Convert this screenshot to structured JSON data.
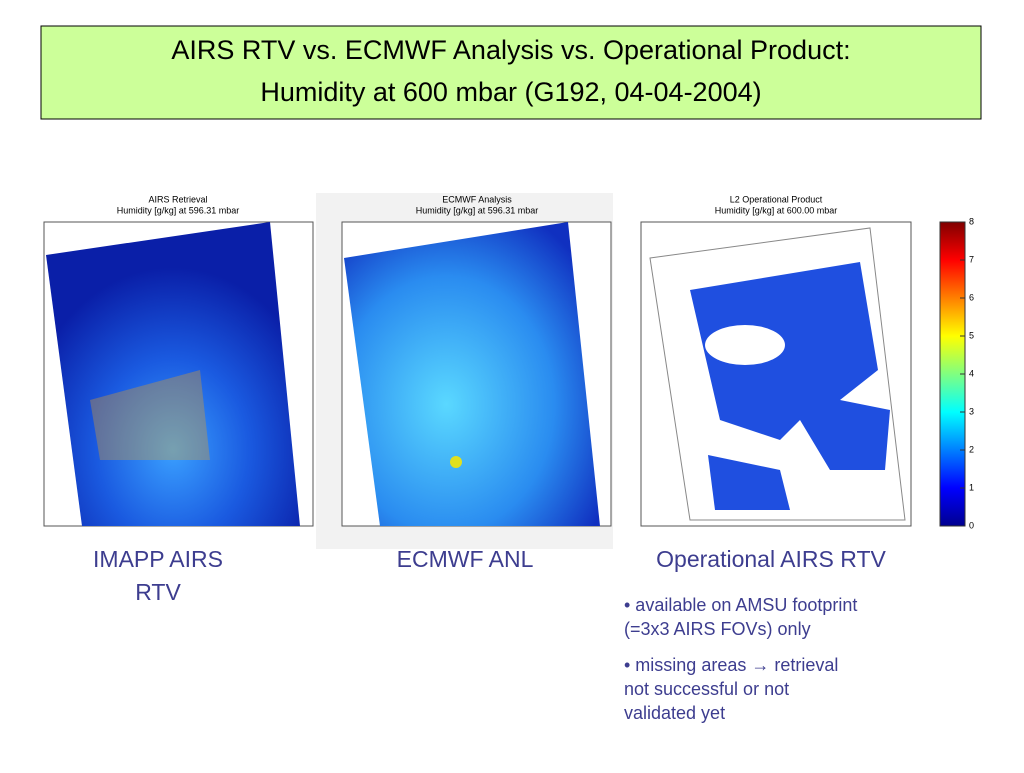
{
  "header": {
    "title_lines": [
      "AIRS RTV vs. ECMWF Analysis vs. Operational Product:",
      "Humidity at 600 mbar (G192, 04-04-2004)"
    ]
  },
  "panels": [
    {
      "title": "AIRS Retrieval",
      "subtitle": "Humidity [g/kg] at 596.31 mbar",
      "caption_lines": [
        "IMAPP AIRS",
        "RTV"
      ]
    },
    {
      "title": "ECMWF Analysis",
      "subtitle": "Humidity [g/kg] at 596.31 mbar",
      "caption_lines": [
        "ECMWF ANL"
      ]
    },
    {
      "title": "L2 Operational Product",
      "subtitle": "Humidity [g/kg] at 600.00 mbar",
      "caption_lines": [
        "Operational AIRS RTV"
      ]
    }
  ],
  "colorbar": {
    "ticks": [
      0,
      1,
      2,
      3,
      4,
      5,
      6,
      7,
      8
    ],
    "lim": [
      0,
      8
    ]
  },
  "bullets": [
    [
      "• available on AMSU footprint",
      "(=3x3 AIRS FOVs) only"
    ],
    [
      "• missing areas → retrieval",
      "not successful or not",
      "validated yet"
    ]
  ]
}
